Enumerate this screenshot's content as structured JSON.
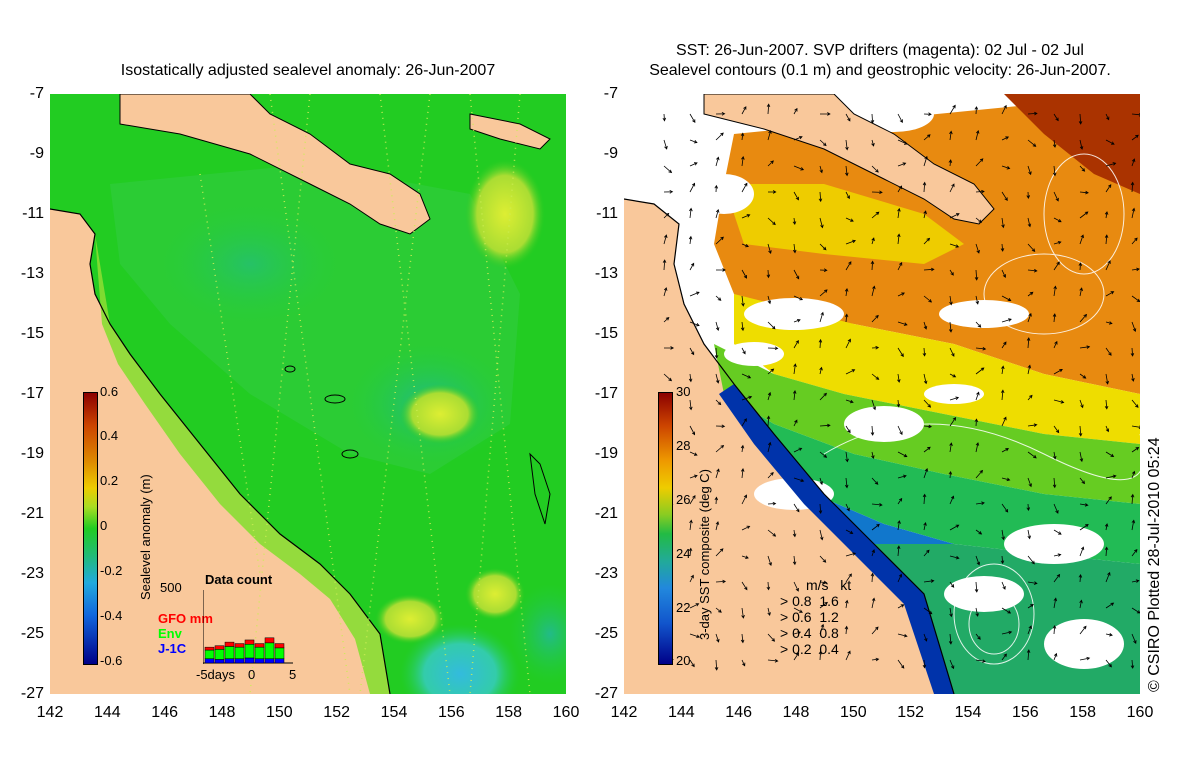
{
  "left_panel": {
    "title": "Isostatically adjusted sealevel anomaly: 26-Jun-2007",
    "colorbar": {
      "label": "Sealevel anomaly (m)",
      "ticks": [
        "0.6",
        "0.4",
        "0.2",
        "0",
        "-0.2",
        "-0.4",
        "-0.6"
      ]
    },
    "inset": {
      "title": "Data count",
      "max": "500",
      "legend": [
        "GFO mm",
        "Env",
        "J-1C"
      ],
      "legend_colors": [
        "#ff0000",
        "#00ff00",
        "#0000ff"
      ],
      "xtick_left": "-5days",
      "xtick_mid": "0",
      "xtick_right": "5",
      "bars": [
        {
          "red": 20,
          "green": 60,
          "blue": 30
        },
        {
          "red": 25,
          "green": 70,
          "blue": 25
        },
        {
          "red": 30,
          "green": 85,
          "blue": 30
        },
        {
          "red": 25,
          "green": 80,
          "blue": 30
        },
        {
          "red": 30,
          "green": 95,
          "blue": 35
        },
        {
          "red": 25,
          "green": 80,
          "blue": 30
        },
        {
          "red": 35,
          "green": 110,
          "blue": 30
        },
        {
          "red": 30,
          "green": 75,
          "blue": 30
        }
      ]
    }
  },
  "right_panel": {
    "title_line1": "SST: 26-Jun-2007. SVP drifters (magenta): 02 Jul - 02 Jul",
    "title_line2": "Sealevel contours (0.1 m) and geostrophic velocity: 26-Jun-2007.",
    "colorbar": {
      "label": "3-day SST composite (deg C)",
      "ticks": [
        "30",
        "28",
        "26",
        "24",
        "22",
        "20"
      ]
    },
    "velocity_legend": {
      "header_ms": "m/s",
      "header_kt": "kt",
      "rows": [
        {
          "ms": "0.8",
          "kt": "1.6"
        },
        {
          "ms": "0.6",
          "kt": "1.2"
        },
        {
          "ms": "0.4",
          "kt": "0.8"
        },
        {
          "ms": "0.2",
          "kt": "0.4"
        }
      ]
    },
    "credit": "© CSIRO Plotted 28-Jul-2010 05:24"
  },
  "axes": {
    "y_ticks": [
      "-7",
      "-9",
      "-11",
      "-13",
      "-15",
      "-17",
      "-19",
      "-21",
      "-23",
      "-25",
      "-27"
    ],
    "x_ticks": [
      "142",
      "144",
      "146",
      "148",
      "150",
      "152",
      "154",
      "156",
      "158",
      "160"
    ]
  },
  "colors": {
    "land": "#f9c89b",
    "ocean_left": "#22cc22",
    "coastline": "#000000"
  }
}
